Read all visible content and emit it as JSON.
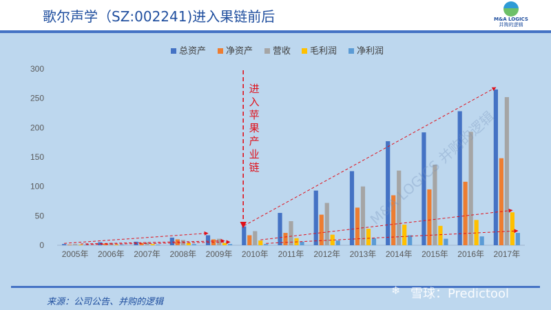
{
  "header": {
    "title": "歌尔声学（SZ:002241)进入果链前后",
    "logo_name": "M&A LOGICS",
    "logo_sub": "并购的逻辑"
  },
  "footer": {
    "source": "来源：公司公告、并购的逻辑",
    "watermark_mark": "雪球",
    "watermark_text": "雪球：Predictool",
    "diagonal_watermark": "M&A LOGICS 并购的逻辑"
  },
  "colors": {
    "total_assets": "#4472c4",
    "net_assets": "#ed7d31",
    "revenue": "#a5a5a5",
    "gross_profit": "#ffc000",
    "net_profit": "#5b9bd5",
    "annotation": "#e0101a"
  },
  "chart_data": {
    "type": "bar",
    "categories": [
      "2005年",
      "2006年",
      "2007年",
      "2008年",
      "2009年",
      "2010年",
      "2011年",
      "2012年",
      "2013年",
      "2014年",
      "2015年",
      "2016年",
      "2017年"
    ],
    "series": [
      {
        "name": "总资产",
        "values": [
          2,
          5,
          6,
          13,
          17,
          32,
          55,
          93,
          126,
          177,
          192,
          228,
          265
        ]
      },
      {
        "name": "净资产",
        "values": [
          1,
          3,
          4,
          10,
          10,
          17,
          21,
          52,
          64,
          85,
          95,
          108,
          148
        ]
      },
      {
        "name": "营收",
        "values": [
          2,
          4,
          5,
          9,
          11,
          24,
          41,
          72,
          100,
          127,
          137,
          193,
          252
        ]
      },
      {
        "name": "毛利润",
        "values": [
          1,
          1,
          2,
          4,
          4,
          8,
          12,
          18,
          28,
          35,
          33,
          43,
          56
        ]
      },
      {
        "name": "净利润",
        "values": [
          0,
          1,
          1,
          2,
          2,
          2,
          6,
          8,
          12,
          17,
          11,
          15,
          21
        ]
      }
    ],
    "ylim": [
      0,
      300
    ],
    "yticks": [
      0,
      50,
      100,
      150,
      200,
      250,
      300
    ],
    "grid": false,
    "legend_position": "top",
    "annotation": {
      "text": "进入苹果产业链",
      "category": "2010年"
    },
    "trend_arrows": [
      {
        "series": "总资产",
        "segments": [
          [
            "2005年",
            "2009年"
          ],
          [
            "2010年",
            "2017年"
          ]
        ]
      },
      {
        "series": "毛利润",
        "segments": [
          [
            "2005年",
            "2009年"
          ],
          [
            "2010年",
            "2017年"
          ]
        ]
      },
      {
        "series": "净利润",
        "segments": [
          [
            "2005年",
            "2009年"
          ],
          [
            "2010年",
            "2017年"
          ]
        ]
      }
    ]
  }
}
